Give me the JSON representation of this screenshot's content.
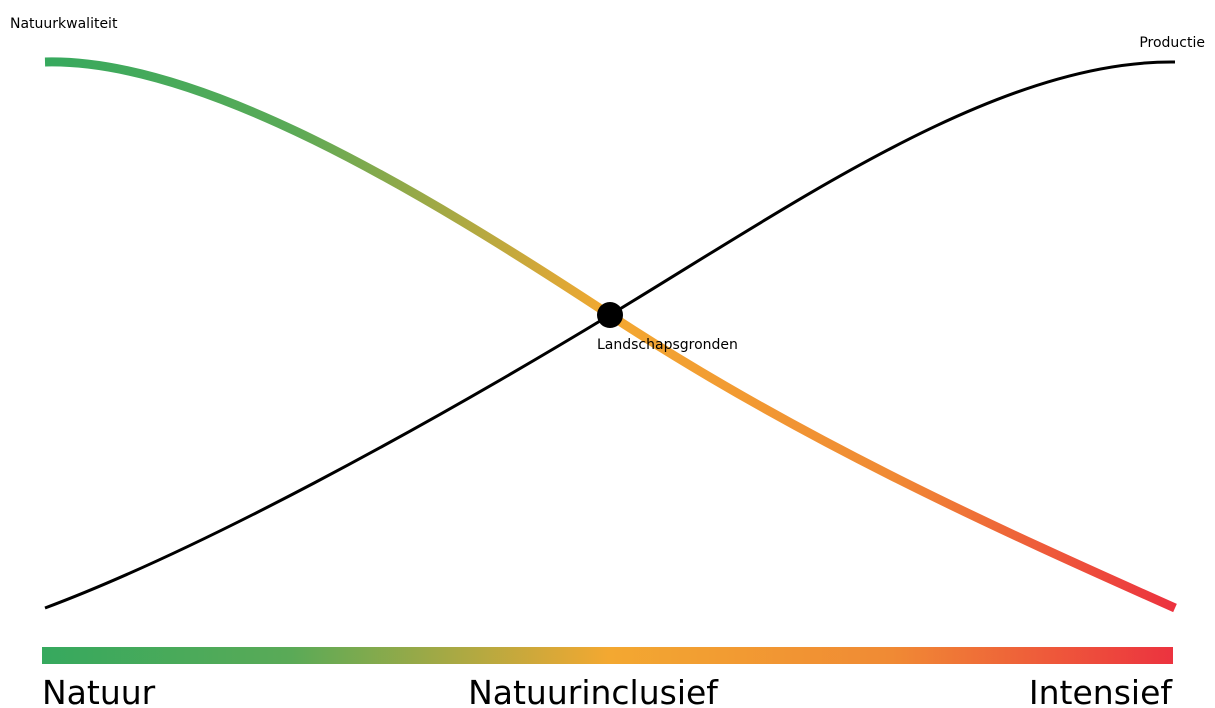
{
  "labels": {
    "quality": "Natuurkwaliteit",
    "production": "Productie",
    "intersection": "Landschapsgronden"
  },
  "scale": {
    "left": "Natuur",
    "middle": "Natuurinclusief",
    "right": "Intensief"
  }
}
